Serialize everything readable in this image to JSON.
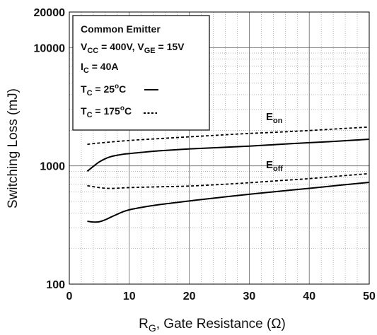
{
  "chart_data": {
    "type": "line",
    "xlabel": {
      "main": "R",
      "sub": "G",
      "rest": ", Gate Resistance (Ω)"
    },
    "ylabel": "Switching Loss (mJ)",
    "xlim": [
      0,
      50
    ],
    "ylim": [
      100,
      20000
    ],
    "yscale": "log",
    "grid": true,
    "x_ticks": [
      "0",
      "10",
      "20",
      "30",
      "40",
      "50"
    ],
    "y_ticks": [
      {
        "value": 100,
        "label": "100"
      },
      {
        "value": 1000,
        "label": "1000"
      },
      {
        "value": 10000,
        "label": "10000"
      },
      {
        "value": 20000,
        "label": "20000"
      }
    ],
    "legend": {
      "line1": "Common Emitter",
      "vcc_main": "V",
      "vcc_sub": "CC",
      "vcc_rest": " = 400V, V",
      "vge_sub": "GE",
      "vge_rest": " = 15V",
      "ic_main": "I",
      "ic_sub": "C",
      "ic_rest": " = 40A",
      "t25_main": "T",
      "t25_sub": "C",
      "t25_mid": " = 25",
      "t25_sup": "o",
      "t25_rest": "C",
      "t175_main": "T",
      "t175_sub": "C",
      "t175_mid": " = 175",
      "t175_sup": "o",
      "t175_rest": "C"
    },
    "curve_labels": {
      "eon_main": "E",
      "eon_sub": "on",
      "eoff_main": "E",
      "eoff_sub": "off"
    },
    "series": [
      {
        "curve": "Eon",
        "style": "solid",
        "x": [
          3,
          4,
          5,
          6,
          7,
          8,
          9,
          10,
          12,
          15,
          20,
          25,
          30,
          35,
          40,
          45,
          50
        ],
        "y": [
          900,
          990,
          1080,
          1150,
          1200,
          1230,
          1255,
          1270,
          1300,
          1340,
          1390,
          1430,
          1470,
          1520,
          1570,
          1620,
          1680
        ]
      },
      {
        "curve": "Eon",
        "style": "dashed",
        "x": [
          3,
          5,
          10,
          15,
          20,
          25,
          30,
          35,
          40,
          45,
          50
        ],
        "y": [
          1520,
          1560,
          1640,
          1700,
          1760,
          1820,
          1880,
          1930,
          1990,
          2060,
          2130
        ]
      },
      {
        "curve": "Eoff",
        "style": "solid",
        "x": [
          3,
          4,
          5,
          6,
          7,
          8,
          9,
          10,
          12,
          15,
          20,
          25,
          30,
          35,
          40,
          45,
          50
        ],
        "y": [
          340,
          335,
          337,
          350,
          370,
          390,
          410,
          425,
          445,
          470,
          505,
          540,
          575,
          610,
          645,
          685,
          725
        ]
      },
      {
        "curve": "Eoff",
        "style": "dashed",
        "x": [
          3,
          5,
          7,
          10,
          15,
          20,
          25,
          30,
          35,
          40,
          45,
          50
        ],
        "y": [
          680,
          655,
          645,
          655,
          665,
          675,
          695,
          720,
          750,
          780,
          820,
          860
        ]
      }
    ]
  }
}
